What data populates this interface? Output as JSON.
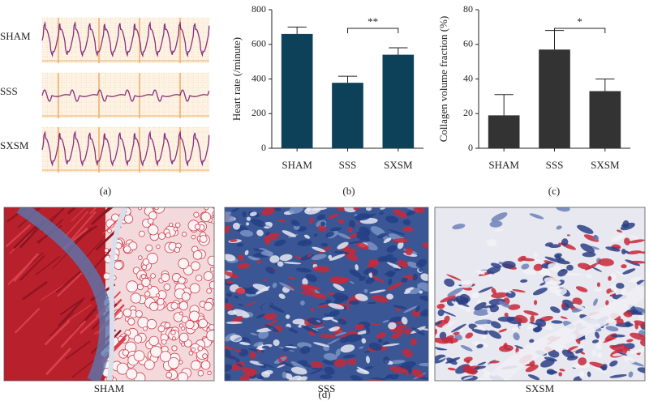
{
  "panel_labels": [
    "(a)",
    "(b)",
    "(c)",
    "(d)"
  ],
  "ecg": {
    "labels": [
      "SHAM",
      "SSS",
      "SXSM"
    ]
  },
  "chart_data": [
    {
      "type": "bar",
      "ylabel": "Heart rate (/minute)",
      "categories": [
        "SHAM",
        "SSS",
        "SXSM"
      ],
      "values": [
        660,
        378,
        540
      ],
      "errors": [
        40,
        38,
        40
      ],
      "color": "#0d4159",
      "ylim": [
        0,
        800
      ],
      "yticks": [
        0,
        200,
        400,
        600,
        800
      ],
      "annotation": "**"
    },
    {
      "type": "bar",
      "ylabel": "Collagen volume fraction (%)",
      "categories": [
        "SHAM",
        "SSS",
        "SXSM"
      ],
      "values": [
        19,
        57,
        33
      ],
      "errors": [
        12,
        11,
        7
      ],
      "color": "#333333",
      "ylim": [
        0,
        80
      ],
      "yticks": [
        0,
        20,
        40,
        60,
        80
      ],
      "annotation": "*"
    }
  ],
  "histology": {
    "labels": [
      "SHAM",
      "SSS",
      "SXSM"
    ]
  }
}
